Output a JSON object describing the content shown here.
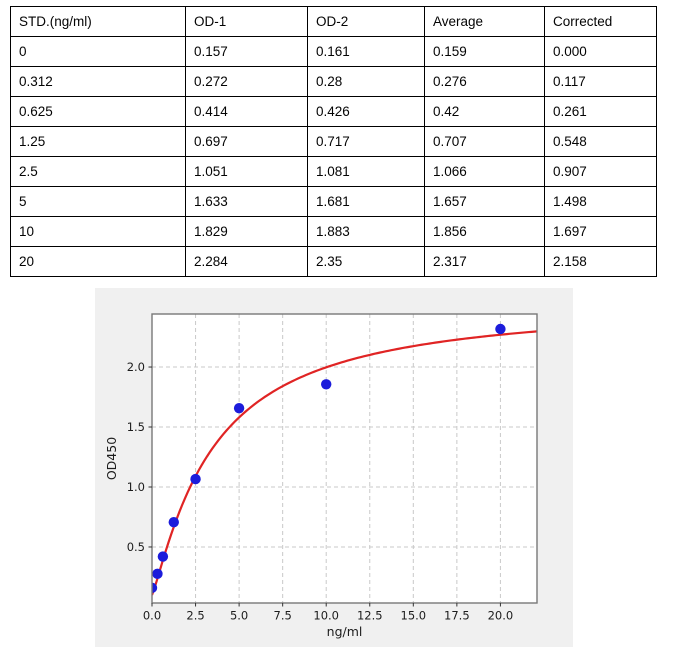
{
  "table": {
    "headers": [
      "STD.(ng/ml)",
      "OD-1",
      "OD-2",
      "Average",
      "Corrected"
    ],
    "rows": [
      [
        "0",
        "0.157",
        "0.161",
        "0.159",
        "0.000"
      ],
      [
        "0.312",
        "0.272",
        "0.28",
        "0.276",
        "0.117"
      ],
      [
        "0.625",
        "0.414",
        "0.426",
        "0.42",
        "0.261"
      ],
      [
        "1.25",
        "0.697",
        "0.717",
        "0.707",
        "0.548"
      ],
      [
        "2.5",
        "1.051",
        "1.081",
        "1.066",
        "0.907"
      ],
      [
        "5",
        "1.633",
        "1.681",
        "1.657",
        "1.498"
      ],
      [
        "10",
        "1.829",
        "1.883",
        "1.856",
        "1.697"
      ],
      [
        "20",
        "2.284",
        "2.35",
        "2.317",
        "2.158"
      ]
    ]
  },
  "chart_data": {
    "type": "scatter",
    "title": "",
    "xlabel": "ng/ml",
    "ylabel": "OD450",
    "x": [
      0,
      0.312,
      0.625,
      1.25,
      2.5,
      5,
      10,
      20
    ],
    "y": [
      0.159,
      0.276,
      0.42,
      0.707,
      1.066,
      1.657,
      1.856,
      2.317
    ],
    "xlim": [
      0,
      22.1
    ],
    "ylim": [
      0.033,
      2.442
    ],
    "xticks": [
      0.0,
      2.5,
      5.0,
      7.5,
      10.0,
      12.5,
      15.0,
      17.5,
      20.0
    ],
    "xtick_labels": [
      "0.0",
      "2.5",
      "5.0",
      "7.5",
      "10.0",
      "12.5",
      "15.0",
      "17.5",
      "20.0"
    ],
    "yticks": [
      0.5,
      1.0,
      1.5,
      2.0
    ],
    "ytick_labels": [
      "0.5",
      "1.0",
      "1.5",
      "2.0"
    ],
    "grid": true,
    "legend": null,
    "fit_curve": {
      "model": "4PL/Hill saturation fit",
      "formula": "y = y0 + (ymax - y0) * x^n / (k^n + x^n)",
      "y0": 0.1,
      "ymax": 2.55,
      "k": 3.484,
      "n": 1.17
    },
    "colors": {
      "points": "#1c1cdb",
      "curve": "#e02424",
      "figure_bg": "#f0f0f0",
      "plot_bg": "#ffffff",
      "grid": "#c9c9c9",
      "frame": "#787878",
      "tick_text": "#1c1c1c"
    }
  }
}
